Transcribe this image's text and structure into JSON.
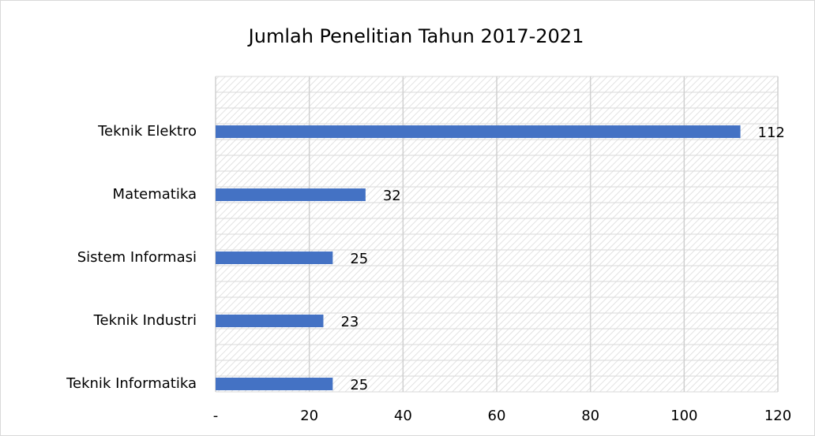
{
  "chart_data": {
    "type": "barh",
    "title": "Jumlah Penelitian Tahun 2017-2021",
    "categories": [
      "Teknik Elektro",
      "Matematika",
      "Sistem Informasi",
      "Teknik Industri",
      "Teknik Informatika"
    ],
    "values": [
      112,
      32,
      25,
      23,
      25
    ],
    "color": "#4472c4",
    "xlim": [
      0,
      120
    ],
    "xticks": [
      {
        "value": 0,
        "label": "-"
      },
      20,
      40,
      60,
      80,
      100,
      120
    ],
    "grid": true
  }
}
